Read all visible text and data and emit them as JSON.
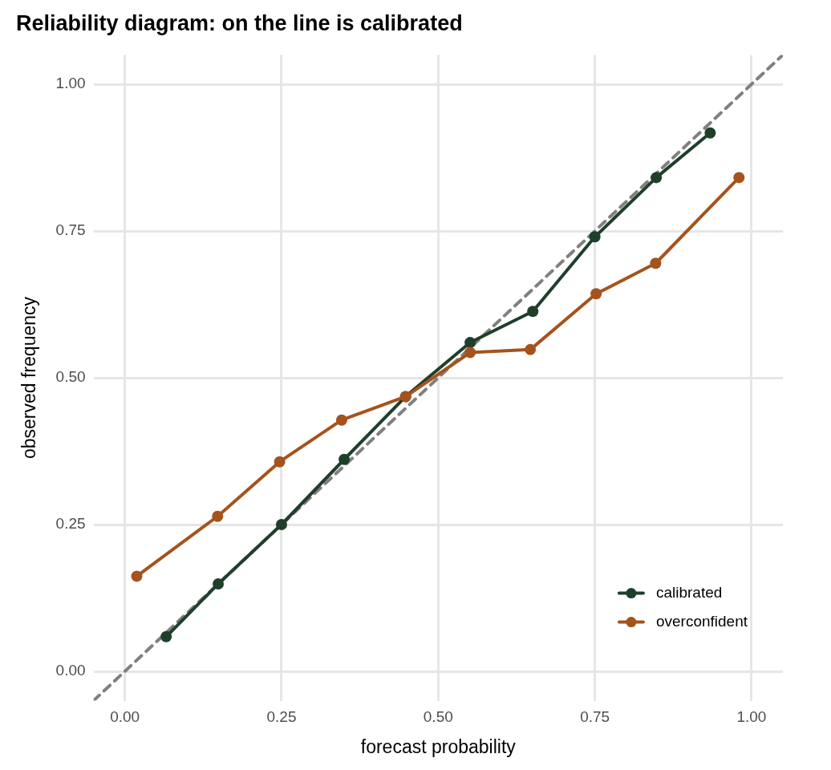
{
  "chart_data": {
    "type": "line",
    "title": "Reliability diagram: on the line is calibrated",
    "xlabel": "forecast probability",
    "ylabel": "observed frequency",
    "xlim": [
      -0.05,
      1.05
    ],
    "ylim": [
      -0.05,
      1.05
    ],
    "xticks": [
      {
        "value": 0,
        "label": "0.00"
      },
      {
        "value": 0.25,
        "label": "0.25"
      },
      {
        "value": 0.5,
        "label": "0.50"
      },
      {
        "value": 0.75,
        "label": "0.75"
      },
      {
        "value": 1,
        "label": "1.00"
      }
    ],
    "yticks": [
      {
        "value": 0,
        "label": "0.00"
      },
      {
        "value": 0.25,
        "label": "0.25"
      },
      {
        "value": 0.5,
        "label": "0.50"
      },
      {
        "value": 0.75,
        "label": "0.75"
      },
      {
        "value": 1,
        "label": "1.00"
      }
    ],
    "grid": true,
    "legend": "bottom right",
    "marker": "circle",
    "line_style": "solid",
    "series": [
      {
        "type": "line",
        "color": "#808080",
        "line_style": "dashed",
        "marker": "none",
        "x": [
          -0.05,
          1.05
        ],
        "values": [
          -0.05,
          1.05
        ]
      },
      {
        "name": "calibrated",
        "color": "#1f3f2b",
        "x": [
          0.066,
          0.149,
          0.25,
          0.35,
          0.448,
          0.551,
          0.651,
          0.75,
          0.848,
          0.934
        ],
        "values": [
          0.059,
          0.149,
          0.25,
          0.361,
          0.468,
          0.56,
          0.613,
          0.74,
          0.841,
          0.917
        ]
      },
      {
        "name": "overconfident",
        "color": "#a5531c",
        "x": [
          0.019,
          0.148,
          0.247,
          0.346,
          0.448,
          0.551,
          0.647,
          0.752,
          0.847,
          0.98
        ],
        "values": [
          0.162,
          0.264,
          0.357,
          0.428,
          0.468,
          0.543,
          0.548,
          0.643,
          0.695,
          0.841
        ]
      }
    ]
  }
}
